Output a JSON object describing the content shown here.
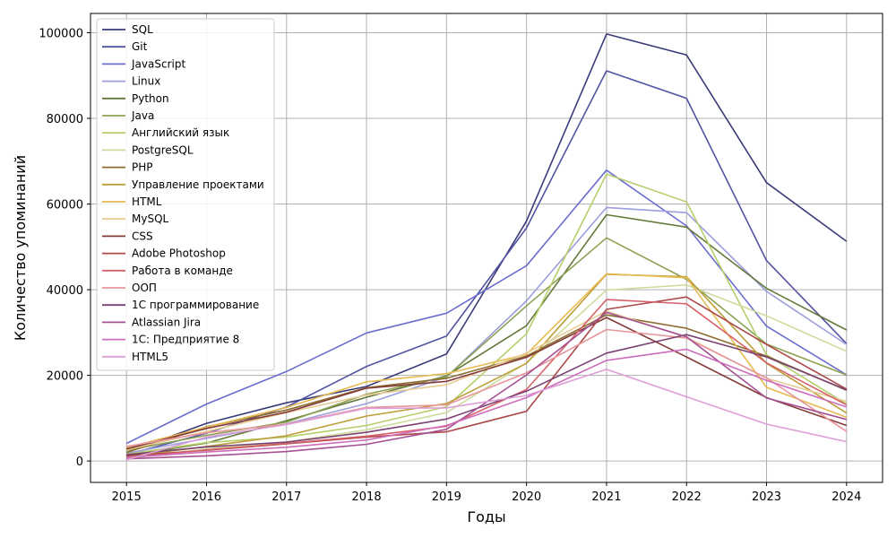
{
  "chart_data": {
    "type": "line",
    "title": "",
    "xlabel": "Годы",
    "ylabel": "Количество упоминаний",
    "x": [
      2015,
      2016,
      2017,
      2018,
      2019,
      2020,
      2021,
      2022,
      2023,
      2024
    ],
    "xlim": [
      2014.55,
      2024.45
    ],
    "ylim": [
      -5000,
      104500
    ],
    "yticks": [
      0,
      20000,
      40000,
      60000,
      80000,
      100000
    ],
    "grid": true,
    "legend_position": "top-left",
    "series": [
      {
        "name": "SQL",
        "color": "#393b79",
        "values": [
          2000,
          8800,
          13600,
          17400,
          25000,
          56000,
          99700,
          94800,
          65000,
          51300
        ]
      },
      {
        "name": "Git",
        "color": "#5254a3",
        "values": [
          1500,
          6500,
          12600,
          22100,
          29200,
          54400,
          91100,
          84700,
          46800,
          27400
        ]
      },
      {
        "name": "JavaScript",
        "color": "#6b6ecf",
        "values": [
          4100,
          13300,
          20900,
          29900,
          34500,
          45600,
          67900,
          54900,
          31500,
          20100
        ]
      },
      {
        "name": "Linux",
        "color": "#9c9ede",
        "values": [
          1800,
          5300,
          8700,
          13400,
          19600,
          37400,
          59200,
          58000,
          39600,
          27200
        ]
      },
      {
        "name": "Python",
        "color": "#637939",
        "values": [
          1200,
          4200,
          9400,
          14900,
          19900,
          31600,
          57500,
          54600,
          40300,
          30600
        ]
      },
      {
        "name": "Java",
        "color": "#8ca252",
        "values": [
          2500,
          6000,
          9100,
          15600,
          19700,
          36200,
          52100,
          42400,
          27300,
          20100
        ]
      },
      {
        "name": "Английский язык",
        "color": "#b5cf6b",
        "values": [
          1600,
          4300,
          5600,
          8300,
          12700,
          29700,
          67000,
          60500,
          24800,
          13300
        ]
      },
      {
        "name": "PostgreSQL",
        "color": "#cedb9c",
        "values": [
          600,
          2800,
          4400,
          7300,
          11300,
          22900,
          39900,
          41100,
          33900,
          25600
        ]
      },
      {
        "name": "PHP",
        "color": "#8c6d31",
        "values": [
          2000,
          8000,
          11900,
          17100,
          19300,
          24500,
          34100,
          31000,
          24500,
          16500
        ]
      },
      {
        "name": "Управление проектами",
        "color": "#bd9e39",
        "values": [
          1000,
          3400,
          5900,
          10500,
          13400,
          22800,
          43600,
          43000,
          22800,
          11200
        ]
      },
      {
        "name": "HTML",
        "color": "#e7ba52",
        "values": [
          3100,
          7900,
          12500,
          18500,
          20400,
          24900,
          43700,
          42800,
          17200,
          10200
        ]
      },
      {
        "name": "MySQL",
        "color": "#e7cb94",
        "values": [
          2600,
          6900,
          11300,
          15400,
          17800,
          25200,
          35000,
          28900,
          19300,
          13900
        ]
      },
      {
        "name": "CSS",
        "color": "#843c39",
        "values": [
          2800,
          7600,
          11400,
          17000,
          18600,
          24200,
          33500,
          24300,
          14800,
          8300
        ]
      },
      {
        "name": "Adobe Photoshop",
        "color": "#ad494a",
        "values": [
          1200,
          2500,
          4000,
          5600,
          6800,
          11600,
          35400,
          38300,
          27200,
          16800
        ]
      },
      {
        "name": "Работа в команде",
        "color": "#d6616b",
        "values": [
          700,
          2600,
          4100,
          5800,
          8100,
          16700,
          37700,
          36700,
          22900,
          13100
        ]
      },
      {
        "name": "ООП",
        "color": "#e7969c",
        "values": [
          3400,
          6600,
          8600,
          12500,
          13100,
          20600,
          30700,
          28700,
          19400,
          6900
        ]
      },
      {
        "name": "1С программирование",
        "color": "#7b4173",
        "values": [
          1500,
          3300,
          4400,
          6700,
          9800,
          16300,
          25200,
          29500,
          24300,
          16600
        ]
      },
      {
        "name": "Atlassian Jira",
        "color": "#a55194",
        "values": [
          500,
          1200,
          2200,
          3900,
          7400,
          20100,
          34700,
          29000,
          14700,
          9700
        ]
      },
      {
        "name": "1С: Предприятие 8",
        "color": "#ce6dbd",
        "values": [
          800,
          2100,
          3200,
          4900,
          8300,
          14800,
          23500,
          26100,
          18800,
          12600
        ]
      },
      {
        "name": "HTML5",
        "color": "#de9ed6",
        "values": [
          300,
          5600,
          8500,
          12300,
          12400,
          15300,
          21400,
          15000,
          8600,
          4500
        ]
      }
    ]
  }
}
